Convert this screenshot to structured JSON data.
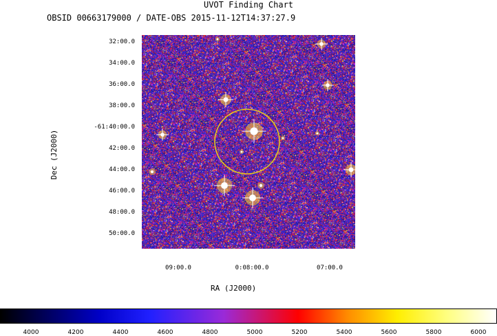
{
  "header": {
    "title": "UVOT Finding Chart",
    "subtitle": "OBSID 00663179000 / DATE-OBS 2015-11-12T14:37:27.9"
  },
  "axes": {
    "xlabel": "RA (J2000)",
    "ylabel": "Dec (J2000)",
    "ra_ticks": [
      "09:00.0",
      "0:08:00.0",
      "07:00.0"
    ],
    "dec_ticks": [
      "32:00.0",
      "34:00.0",
      "36:00.0",
      "38:00.0",
      "-61:40:00.0",
      "42:00.0",
      "44:00.0",
      "46:00.0",
      "48:00.0",
      "50:00.0"
    ]
  },
  "colorbar": {
    "ticks": [
      "4000",
      "4200",
      "4400",
      "4600",
      "4800",
      "5000",
      "5200",
      "5400",
      "5600",
      "5800",
      "6000"
    ]
  },
  "overlay": {
    "circle_color": "#e6c81e"
  },
  "colors": {
    "background_noise_blue": "#2a1fb0",
    "noise_red": "#d01818",
    "star_white": "#ffffff"
  }
}
